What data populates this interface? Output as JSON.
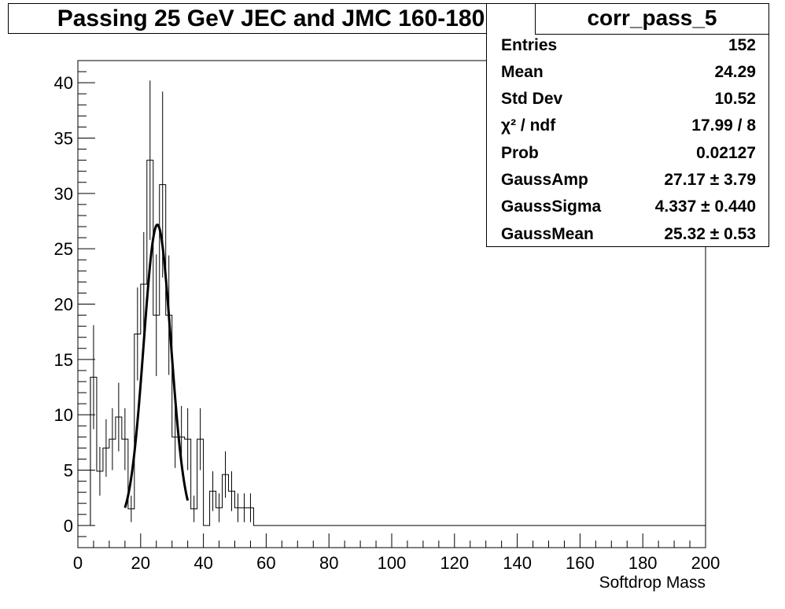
{
  "title": "Passing 25 GeV JEC and JMC 160-180",
  "stats": {
    "name": "corr_pass_5",
    "rows": [
      {
        "label": "Entries",
        "value": "152"
      },
      {
        "label": "Mean",
        "value": "24.29"
      },
      {
        "label": "Std Dev",
        "value": "10.52"
      },
      {
        "label": "χ² / ndf",
        "value": "17.99 / 8"
      },
      {
        "label": "Prob",
        "value": "0.02127"
      },
      {
        "label": "GaussAmp",
        "value": "27.17 ± 3.79"
      },
      {
        "label": "GaussSigma",
        "value": "4.337 ± 0.440"
      },
      {
        "label": "GaussMean",
        "value": "25.32 ± 0.53"
      }
    ]
  },
  "chart_data": {
    "type": "bar",
    "style": "histogram-step-with-errors",
    "xlabel": "Softdrop Mass",
    "ylabel": "",
    "xlim": [
      0,
      200
    ],
    "ylim": [
      -2,
      42
    ],
    "bin_width": 2,
    "x_ticks": [
      0,
      20,
      40,
      60,
      80,
      100,
      120,
      140,
      160,
      180,
      200
    ],
    "y_ticks": [
      0,
      5,
      10,
      15,
      20,
      25,
      30,
      35,
      40
    ],
    "bins_lower_edge": [
      4,
      6,
      8,
      10,
      12,
      14,
      16,
      18,
      20,
      22,
      24,
      26,
      28,
      30,
      32,
      34,
      36,
      38,
      40,
      42,
      44,
      46,
      48,
      50,
      52,
      54
    ],
    "values": [
      13.4,
      4.9,
      7.0,
      7.8,
      9.8,
      7.8,
      1.5,
      17.3,
      21.8,
      33.0,
      19.0,
      30.8,
      19.0,
      8.0,
      8.0,
      7.8,
      1.5,
      7.8,
      0,
      3.1,
      1.6,
      4.6,
      3.1,
      1.6,
      1.6,
      1.6
    ],
    "errors": [
      4.7,
      2.2,
      2.6,
      2.8,
      3.1,
      2.8,
      1.2,
      4.2,
      4.7,
      7.2,
      5.5,
      8.4,
      5.4,
      2.8,
      2.8,
      2.8,
      1.2,
      2.8,
      0,
      1.8,
      1.3,
      2.1,
      1.8,
      1.3,
      1.3,
      1.3
    ],
    "fit": {
      "function": "gaus",
      "amp": 27.17,
      "mean": 25.32,
      "sigma": 4.337,
      "range": [
        15,
        35
      ]
    }
  }
}
